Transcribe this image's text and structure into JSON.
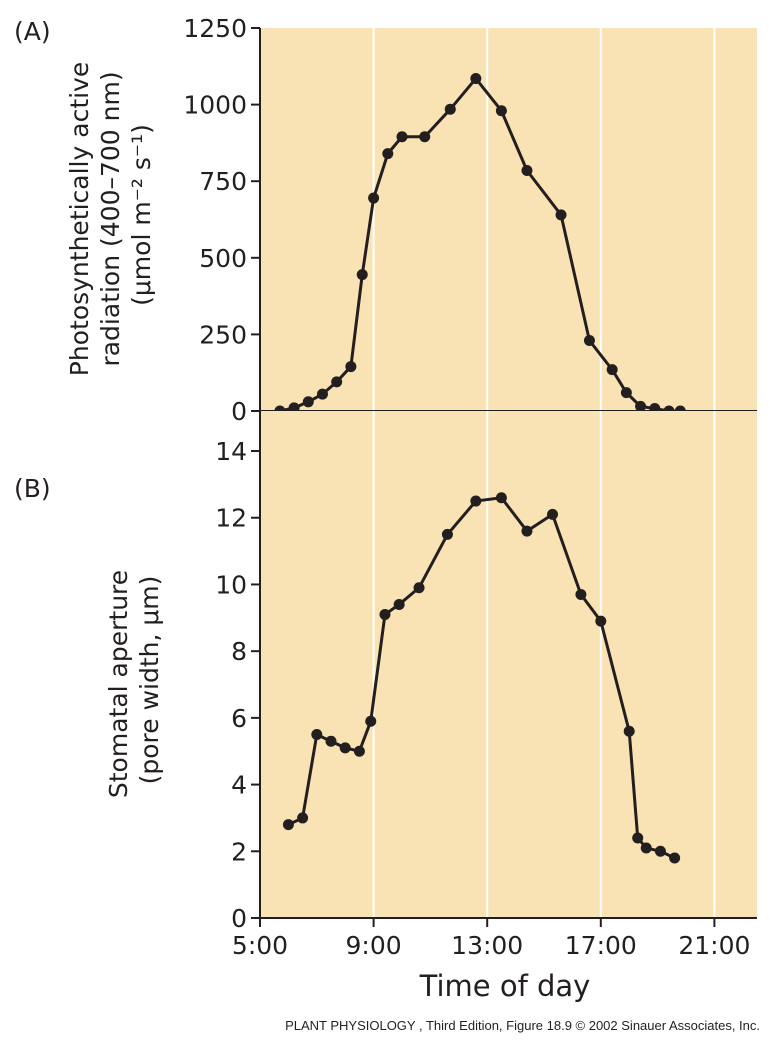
{
  "chart_data": [
    {
      "panel": "(A)",
      "type": "line",
      "ylabel": [
        "Photosynthetically active",
        "radiation (400–700 nm)",
        "(μmol m⁻² s⁻¹)"
      ],
      "xlabel": "",
      "xlim": [
        5,
        22.5
      ],
      "ylim": [
        0,
        1250
      ],
      "yticks": [
        0,
        250,
        500,
        750,
        1000,
        1250
      ],
      "ytick_labels": [
        "0",
        "250",
        "500",
        "750",
        "1000",
        "1250"
      ],
      "grid": true,
      "colors": {
        "background": "#f9e3b4",
        "line": "#231f20",
        "grid": "#ffffff"
      },
      "series": [
        {
          "x": [
            5.7,
            6.2,
            6.7,
            7.2,
            7.7,
            8.2,
            8.6,
            9.0,
            9.5,
            10.0,
            10.8,
            11.7,
            12.6,
            13.5,
            14.4,
            15.6,
            16.6,
            17.4,
            17.9,
            18.4,
            18.9,
            19.4,
            19.8
          ],
          "y": [
            0,
            10,
            30,
            55,
            95,
            145,
            445,
            695,
            840,
            895,
            895,
            985,
            1085,
            980,
            785,
            640,
            230,
            135,
            60,
            15,
            8,
            0,
            0
          ]
        }
      ]
    },
    {
      "panel": "(B)",
      "type": "line",
      "ylabel": [
        "Stomatal aperture",
        "(pore width, μm)"
      ],
      "xlabel": "Time of day",
      "xlim": [
        5,
        22.5
      ],
      "ylim": [
        0,
        15.2
      ],
      "yticks": [
        0,
        2,
        4,
        6,
        8,
        10,
        12,
        14
      ],
      "ytick_labels": [
        "0",
        "2",
        "4",
        "6",
        "8",
        "10",
        "12",
        "14"
      ],
      "xticks": [
        5,
        9,
        13,
        17,
        21
      ],
      "xtick_labels": [
        "5:00",
        "9:00",
        "13:00",
        "17:00",
        "21:00"
      ],
      "grid": true,
      "colors": {
        "background": "#f9e3b4",
        "line": "#231f20",
        "grid": "#ffffff"
      },
      "series": [
        {
          "x": [
            6.0,
            6.5,
            7.0,
            7.5,
            8.0,
            8.5,
            8.9,
            9.4,
            9.9,
            10.6,
            11.6,
            12.6,
            13.5,
            14.4,
            15.3,
            16.3,
            17.0,
            18.0,
            18.3,
            18.6,
            19.1,
            19.6
          ],
          "y": [
            2.8,
            3.0,
            5.5,
            5.3,
            5.1,
            5.0,
            5.9,
            9.1,
            9.4,
            9.9,
            11.5,
            12.5,
            12.6,
            11.6,
            12.1,
            9.7,
            8.9,
            5.6,
            2.4,
            2.1,
            2.0,
            1.8
          ]
        }
      ]
    }
  ],
  "credit": "PLANT PHYSIOLOGY , Third Edition, Figure 18.9  © 2002 Sinauer Associates, Inc."
}
